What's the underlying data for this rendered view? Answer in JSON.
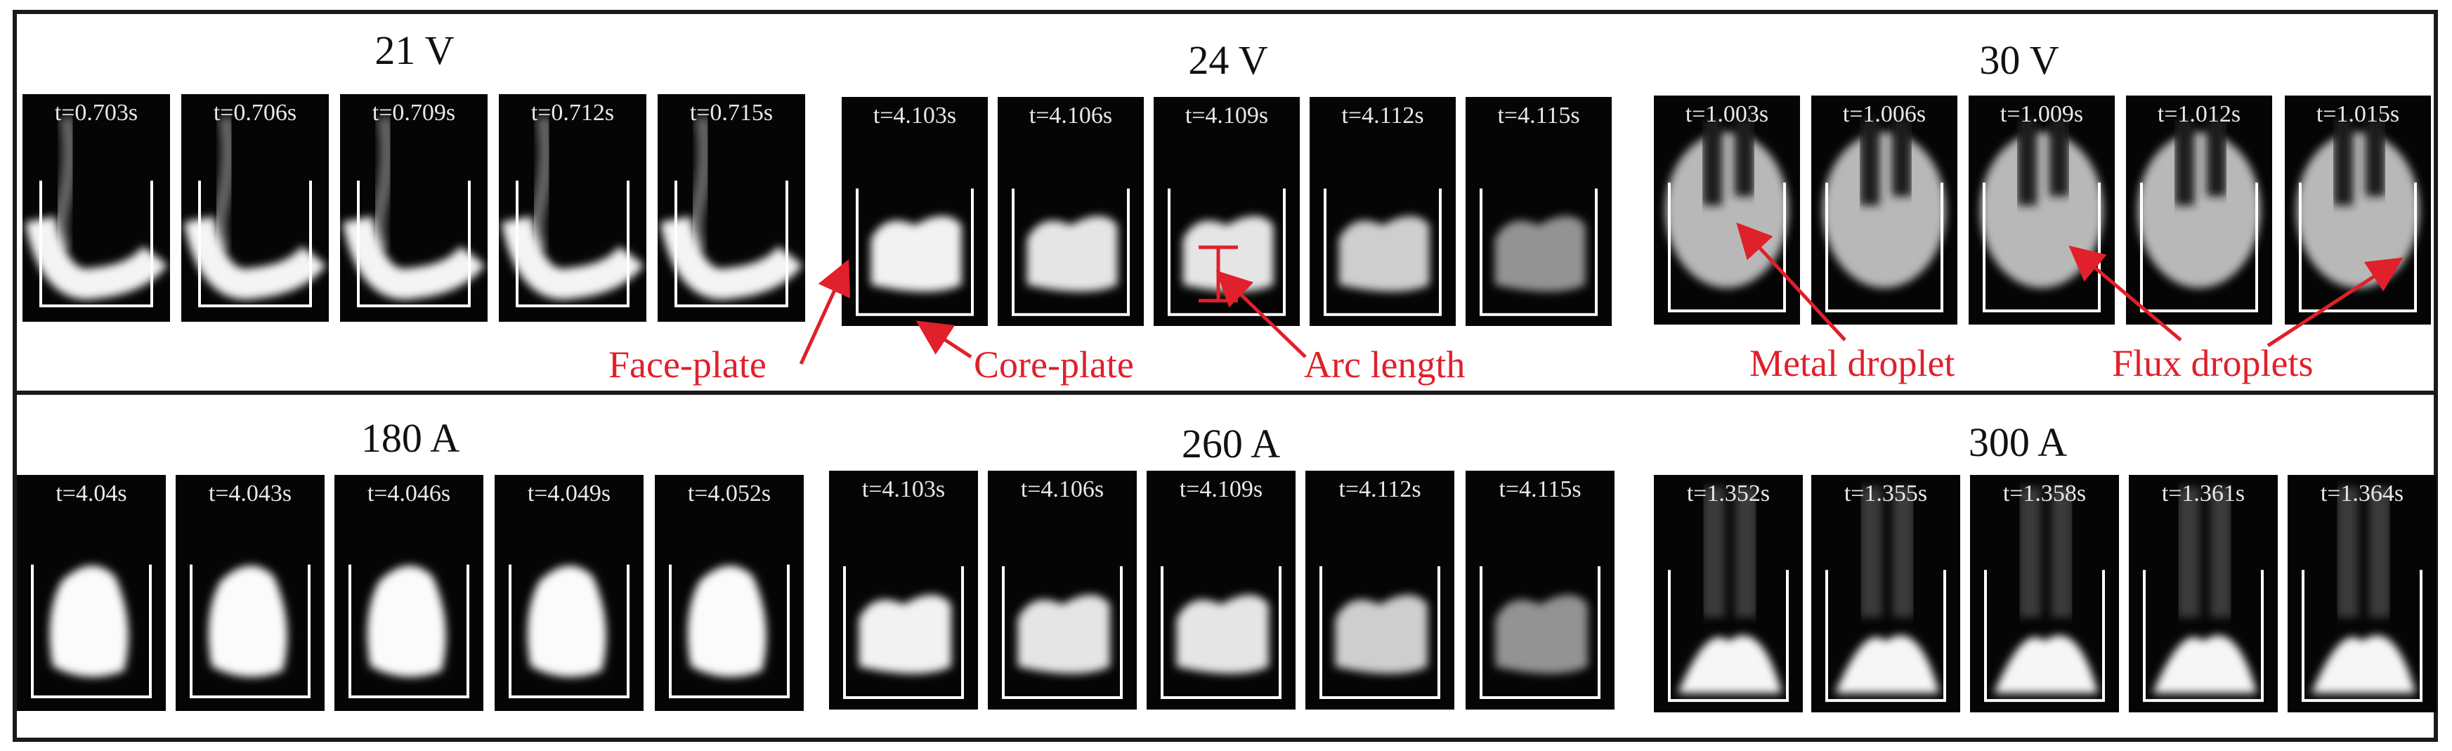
{
  "rows": [
    {
      "groups": [
        {
          "label": "21 V",
          "shape": "u",
          "times": [
            "t=0.703s",
            "t=0.706s",
            "t=0.709s",
            "t=0.712s",
            "t=0.715s"
          ]
        },
        {
          "label": "24 V",
          "shape": "block",
          "times": [
            "t=4.103s",
            "t=4.106s",
            "t=4.109s",
            "t=4.112s",
            "t=4.115s"
          ]
        },
        {
          "label": "30 V",
          "shape": "fork",
          "times": [
            "t=1.003s",
            "t=1.006s",
            "t=1.009s",
            "t=1.012s",
            "t=1.015s"
          ]
        }
      ]
    },
    {
      "groups": [
        {
          "label": "180 A",
          "shape": "blob",
          "times": [
            "t=4.04s",
            "t=4.043s",
            "t=4.046s",
            "t=4.049s",
            "t=4.052s"
          ]
        },
        {
          "label": "260 A",
          "shape": "block",
          "times": [
            "t=4.103s",
            "t=4.106s",
            "t=4.109s",
            "t=4.112s",
            "t=4.115s"
          ]
        },
        {
          "label": "300 A",
          "shape": "pool",
          "times": [
            "t=1.352s",
            "t=1.355s",
            "t=1.358s",
            "t=1.361s",
            "t=1.364s"
          ]
        }
      ]
    }
  ],
  "annotations": {
    "face_plate": "Face-plate",
    "core_plate": "Core-plate",
    "arc_length": "Arc length",
    "metal_droplet": "Metal droplet",
    "flux_droplets": "Flux droplets"
  },
  "colors": {
    "annotation": "#e0202a",
    "frame": "#050505",
    "plate": "#ffffff",
    "border": "#1a1a1a"
  }
}
